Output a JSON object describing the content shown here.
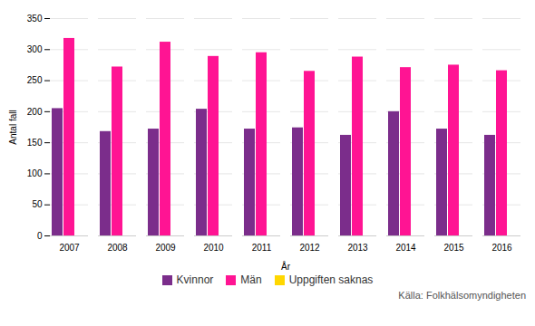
{
  "chart_data": {
    "type": "bar",
    "categories": [
      "2007",
      "2008",
      "2009",
      "2010",
      "2011",
      "2012",
      "2013",
      "2014",
      "2015",
      "2016"
    ],
    "series": [
      {
        "name": "Kvinnor",
        "color": "#7B2D8B",
        "values": [
          205,
          168,
          172,
          204,
          172,
          174,
          162,
          200,
          172,
          162
        ]
      },
      {
        "name": "Män",
        "color": "#FF1493",
        "values": [
          318,
          272,
          312,
          289,
          295,
          265,
          288,
          271,
          275,
          266
        ]
      },
      {
        "name": "Uppgiften saknas",
        "color": "#FFD700",
        "values": [
          0,
          0,
          0,
          0,
          0,
          0,
          0,
          0,
          0,
          0
        ]
      }
    ],
    "xlabel": "År",
    "ylabel": "Antal fall",
    "ylim": [
      0,
      350
    ],
    "yticks": [
      0,
      50,
      100,
      150,
      200,
      250,
      300,
      350
    ],
    "grid": true,
    "legend": "bottom",
    "source": "Källa:  Folkhälsomyndigheten"
  }
}
